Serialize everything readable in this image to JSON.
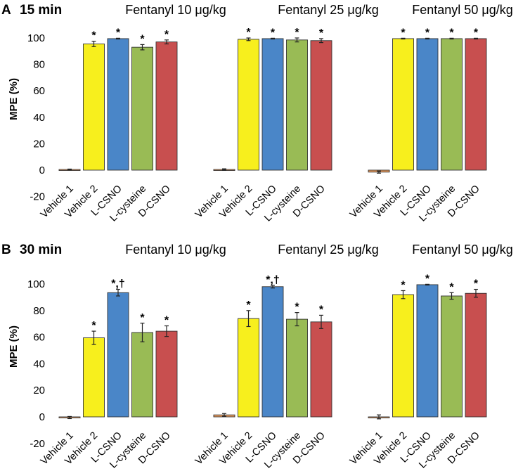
{
  "colors": {
    "Vehicle 1": "#f0a060",
    "Vehicle 2": "#f7ef1d",
    "L-CSNO": "#4a86c8",
    "L-cysteine": "#99bb55",
    "D-CSNO": "#c84f4f"
  },
  "chart_data": [
    {
      "type": "bar",
      "panel": "A",
      "time": "15 min",
      "ylabel": "MPE (%)",
      "ylim": [
        -20,
        100
      ],
      "yticks": [
        "-20",
        "0",
        "20",
        "40",
        "60",
        "80",
        "100"
      ],
      "categories": [
        "Vehicle 1",
        "Vehicle 2",
        "L-CSNO",
        "L-cysteine",
        "D-CSNO"
      ],
      "groups": [
        {
          "title": "Fentanyl 10 μg/kg",
          "values": [
            0.5,
            95.5,
            99.5,
            93,
            97
          ],
          "errors": [
            0.3,
            2,
            0.3,
            2,
            1.5
          ],
          "marks": [
            "",
            "*",
            "*",
            "*",
            "*"
          ]
        },
        {
          "title": "Fentanyl 25 μg/kg",
          "values": [
            0.5,
            99,
            99.5,
            98.5,
            98
          ],
          "errors": [
            0.5,
            1,
            0.3,
            1.5,
            1.5
          ],
          "marks": [
            "",
            "*",
            "*",
            "*",
            "*"
          ]
        },
        {
          "title": "Fentanyl 50 μg/kg",
          "values": [
            -1.5,
            99.5,
            99.5,
            99.5,
            99.5
          ],
          "errors": [
            0.8,
            0.3,
            0.3,
            0.3,
            0.3
          ],
          "marks": [
            "",
            "*",
            "*",
            "*",
            "*"
          ]
        }
      ]
    },
    {
      "type": "bar",
      "panel": "B",
      "time": "30 min",
      "ylabel": "MPE (%)",
      "ylim": [
        -20,
        100
      ],
      "yticks": [
        "-20",
        "0",
        "20",
        "40",
        "60",
        "80",
        "100"
      ],
      "categories": [
        "Vehicle 1",
        "Vehicle 2",
        "L-CSNO",
        "L-cysteine",
        "D-CSNO"
      ],
      "groups": [
        {
          "title": "Fentanyl 10 μg/kg",
          "values": [
            -0.5,
            59.5,
            93.5,
            63.5,
            64.5
          ],
          "errors": [
            0.8,
            5,
            2.5,
            7,
            4
          ],
          "marks": [
            "",
            "*",
            "*,†",
            "*",
            "*"
          ]
        },
        {
          "title": "Fentanyl 25 μg/kg",
          "values": [
            1.5,
            74,
            98,
            73.5,
            71.5
          ],
          "errors": [
            1,
            6,
            1,
            5,
            5
          ],
          "marks": [
            "",
            "*",
            "*,†",
            "*",
            "*"
          ]
        },
        {
          "title": "Fentanyl 50 μg/kg",
          "values": [
            0,
            92,
            99.5,
            91,
            93
          ],
          "errors": [
            1.5,
            3,
            0.3,
            2.5,
            3
          ],
          "marks": [
            "",
            "*",
            "*",
            "*",
            "*"
          ]
        }
      ]
    }
  ]
}
